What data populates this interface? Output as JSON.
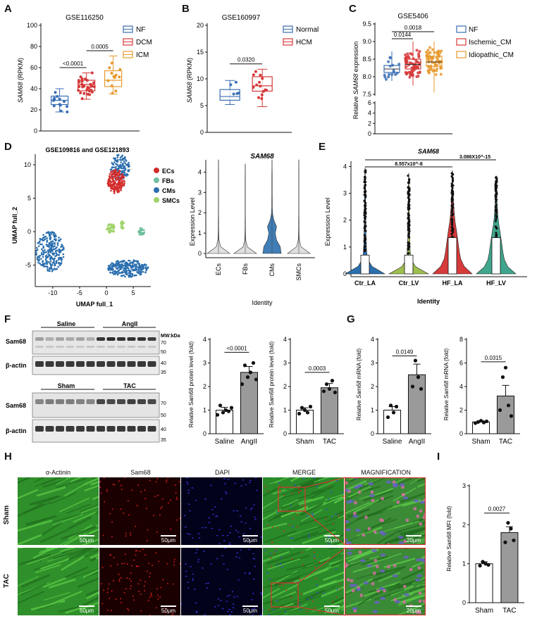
{
  "panels": {
    "A": "A",
    "B": "B",
    "C": "C",
    "D": "D",
    "E": "E",
    "F": "F",
    "G": "G",
    "H": "H",
    "I": "I"
  },
  "colors": {
    "blue": "#3a6fb5",
    "red": "#d63a3a",
    "orange": "#e69a2e",
    "ecs": "#d42c2c",
    "fbs": "#6fbf9e",
    "cms": "#2a6fae",
    "smcs": "#9fd36a",
    "violin_teal": "#3fa58c",
    "violin_olive": "#9fbf4f",
    "gray_bar": "#9a9a9a"
  },
  "chart_data": [
    {
      "id": "A",
      "type": "box",
      "title": "GSE116250",
      "ylabel_italic": "SAM68",
      "ylabel_rest": " (RPKM)",
      "ylim": [
        0,
        100
      ],
      "yticks": [
        "0",
        "20",
        "40",
        "60",
        "80",
        "100"
      ],
      "series": [
        {
          "name": "NF",
          "q1": 25,
          "median": 29,
          "q3": 33,
          "min": 18,
          "max": 40
        },
        {
          "name": "DCM",
          "q1": 38,
          "median": 44,
          "q3": 48,
          "min": 30,
          "max": 55
        },
        {
          "name": "ICM",
          "q1": 42,
          "median": 48,
          "q3": 57,
          "min": 35,
          "max": 71
        }
      ],
      "brackets": [
        {
          "label": "<0.0001",
          "from": 0,
          "to": 1,
          "y": 60
        },
        {
          "label": "0.0005",
          "from": 1,
          "to": 2,
          "y": 76
        }
      ]
    },
    {
      "id": "B",
      "type": "box",
      "title": "GSE160997",
      "ylabel_italic": "SAM68",
      "ylabel_rest": " (RPKM)",
      "ylim": [
        0,
        20
      ],
      "yticks": [
        "0",
        "5",
        "10",
        "15",
        "20"
      ],
      "series": [
        {
          "name": "Normal",
          "q1": 6.0,
          "median": 6.7,
          "q3": 8.0,
          "min": 5.2,
          "max": 9.7
        },
        {
          "name": "HCM",
          "q1": 7.7,
          "median": 8.7,
          "q3": 10.4,
          "min": 4.8,
          "max": 11.8
        }
      ],
      "brackets": [
        {
          "label": "0.0320",
          "from": 0,
          "to": 1,
          "y": 12.8
        }
      ]
    },
    {
      "id": "C",
      "type": "box",
      "title": "GSE5406",
      "ylabel_pre": "Relative ",
      "ylabel_italic": "SAM68",
      "ylabel_rest": " expression",
      "yticks_upper": [
        "7.5",
        "8.0",
        "8.5",
        "9.0",
        "9.5"
      ],
      "yticks_lower": [
        "0",
        "2",
        "4",
        "6"
      ],
      "series": [
        {
          "name": "NF",
          "q1": 8.12,
          "median": 8.22,
          "q3": 8.32,
          "min": 7.88,
          "max": 8.72
        },
        {
          "name": "Ischemic_CM",
          "q1": 8.22,
          "median": 8.35,
          "q3": 8.5,
          "min": 7.75,
          "max": 9.0
        },
        {
          "name": "Idiopathic_CM",
          "q1": 8.3,
          "median": 8.42,
          "q3": 8.58,
          "min": 7.55,
          "max": 9.0
        }
      ],
      "brackets": [
        {
          "label": "0.0144",
          "from": 0,
          "to": 1,
          "y": 9.08
        },
        {
          "label": "0.0018",
          "from": 0,
          "to": 2,
          "y": 9.28
        }
      ]
    },
    {
      "id": "D1",
      "type": "scatter",
      "title": "GSE109816 and GSE121893",
      "xlabel": "UMAP full_1",
      "ylabel": "UMAP full_2",
      "xticks": [
        "-10",
        "-5",
        "0",
        "5"
      ],
      "yticks": [
        "-5",
        "0",
        "5",
        "10"
      ],
      "legend": [
        "ECs",
        "FBs",
        "CMs",
        "SMCs"
      ]
    },
    {
      "id": "D2",
      "type": "violin",
      "title": "SAM68",
      "xlabel": "Identity",
      "ylabel": "Expression Level",
      "categories": [
        "ECs",
        "FBs",
        "CMs",
        "SMCs"
      ],
      "yticks": [
        "0",
        "1",
        "2",
        "3",
        "4"
      ]
    },
    {
      "id": "E",
      "type": "violin",
      "title": "SAM68",
      "xlabel": "Identity",
      "ylabel": "Expression Level",
      "categories": [
        "Ctr_LA",
        "Ctr_LV",
        "HF_LA",
        "HF_LV"
      ],
      "yticks": [
        "0",
        "1",
        "2",
        "3",
        "4"
      ],
      "brackets": [
        {
          "label": "8.557x10^-8",
          "from": 0,
          "to": 2
        },
        {
          "label": "3.086X10^-15",
          "from": 0,
          "to": 3
        }
      ]
    },
    {
      "id": "F1",
      "type": "bar",
      "ylabel": "Relative Sam68 protein level (fold)",
      "categories": [
        "Saline",
        "AngII"
      ],
      "values": [
        1.0,
        2.6
      ],
      "ylim": [
        0,
        4
      ],
      "yticks": [
        "0",
        "1",
        "2",
        "3",
        "4"
      ],
      "brackets": [
        {
          "label": "<0.0001",
          "from": 0,
          "to": 1,
          "y": 3.45
        }
      ]
    },
    {
      "id": "F2",
      "type": "bar",
      "ylabel": "Relative Sam68 protein level (fold)",
      "categories": [
        "Sham",
        "TAC"
      ],
      "values": [
        1.0,
        1.95
      ],
      "ylim": [
        0,
        4
      ],
      "yticks": [
        "0",
        "1",
        "2",
        "3",
        "4"
      ],
      "brackets": [
        {
          "label": "0.0003",
          "from": 0,
          "to": 1,
          "y": 2.6
        }
      ]
    },
    {
      "id": "G1",
      "type": "bar",
      "ylabel_pre": "Relative ",
      "ylabel_italic": "Sam68",
      "ylabel_rest": " mRNA (fold)",
      "categories": [
        "Saline",
        "AngII"
      ],
      "values": [
        1.0,
        2.5
      ],
      "ylim": [
        0,
        4
      ],
      "yticks": [
        "0",
        "1",
        "2",
        "3",
        "4"
      ],
      "brackets": [
        {
          "label": "0.0149",
          "from": 0,
          "to": 1,
          "y": 3.3
        }
      ]
    },
    {
      "id": "G2",
      "type": "bar",
      "ylabel_pre": "Relative ",
      "ylabel_italic": "Sam68",
      "ylabel_rest": " mRNA (fold)",
      "categories": [
        "Sham",
        "TAC"
      ],
      "values": [
        1.0,
        3.2
      ],
      "ylim": [
        0,
        8
      ],
      "yticks": [
        "0",
        "2",
        "4",
        "6",
        "8"
      ],
      "brackets": [
        {
          "label": "0.0315",
          "from": 0,
          "to": 1,
          "y": 6.1
        }
      ]
    },
    {
      "id": "I",
      "type": "bar",
      "ylabel": "Relative Sam68 MFI (fold)",
      "categories": [
        "Sham",
        "TAC"
      ],
      "values": [
        1.0,
        1.8
      ],
      "ylim": [
        0,
        3
      ],
      "yticks": [
        "0",
        "1",
        "2",
        "3"
      ],
      "brackets": [
        {
          "label": "0.0027",
          "from": 0,
          "to": 1,
          "y": 2.3
        }
      ]
    }
  ],
  "western": {
    "top_groups": [
      "Saline",
      "AngII"
    ],
    "bottom_groups": [
      "Sham",
      "TAC"
    ],
    "mw_label": "MW:kDa",
    "bands": [
      "Sam68",
      "β-actin",
      "Sam68",
      "β-actin"
    ],
    "markers_top": [
      "70",
      "50",
      "40",
      "35"
    ],
    "markers_bottom": [
      "70",
      "50",
      "40",
      "35"
    ]
  },
  "micro": {
    "columns": [
      "α-Actinin",
      "Sam68",
      "DAPI",
      "MERGE",
      "MAGNIFICATION"
    ],
    "rows": [
      "Sham",
      "TAC"
    ],
    "scale": [
      "50μm",
      "50μm",
      "50μm",
      "50μm",
      "20μm"
    ]
  }
}
